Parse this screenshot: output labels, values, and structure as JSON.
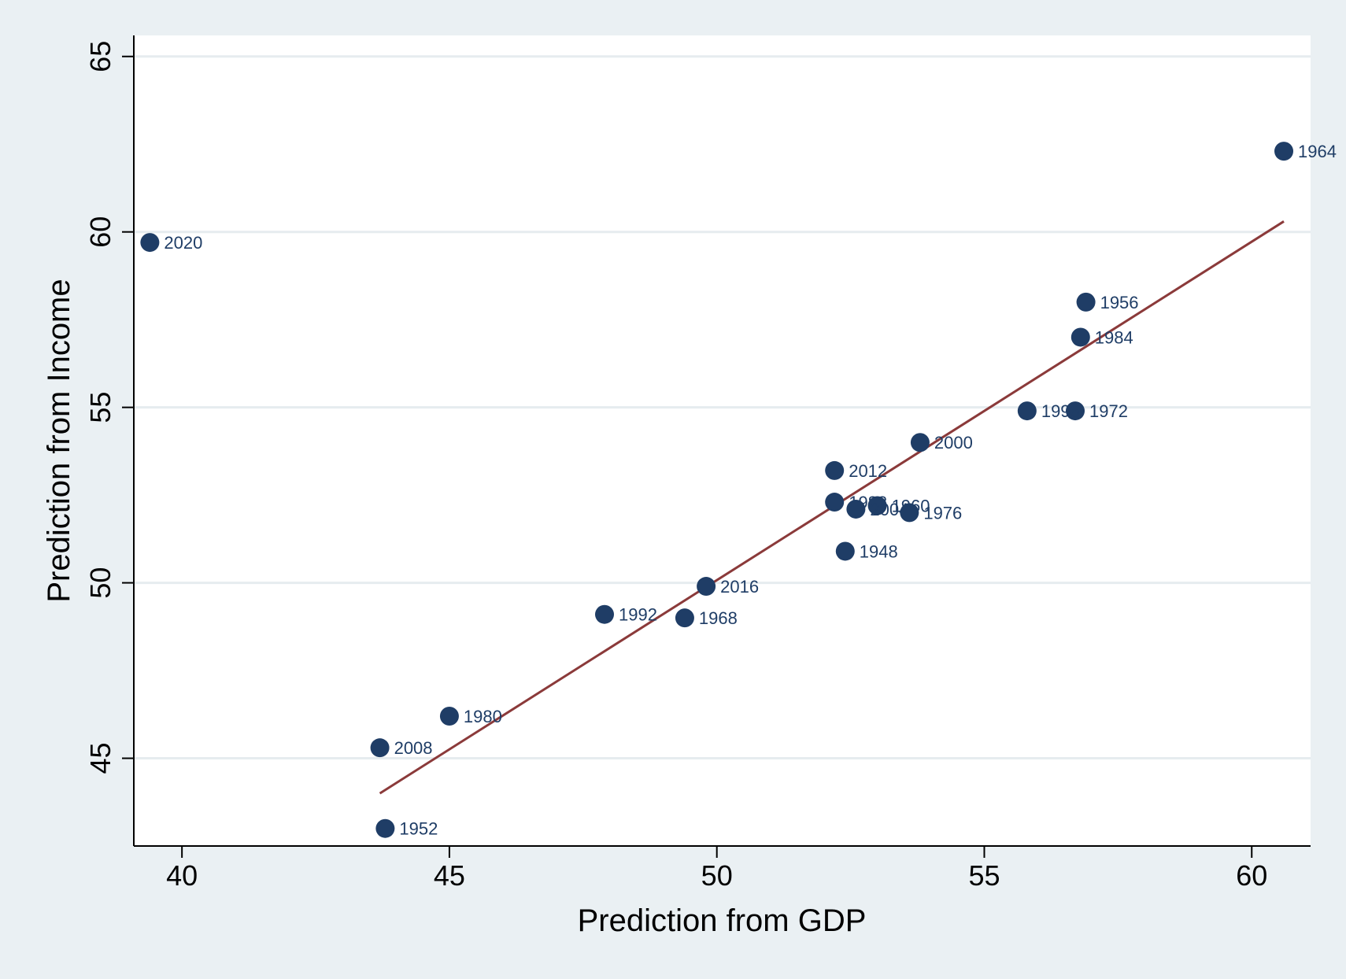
{
  "chart_data": {
    "type": "scatter",
    "title": "",
    "xlabel": "Prediction from GDP",
    "ylabel": "Prediction from Income",
    "xlim": [
      39.1,
      61.1
    ],
    "ylim": [
      42.5,
      65.6
    ],
    "x_ticks": [
      40,
      45,
      50,
      55,
      60
    ],
    "y_ticks": [
      45,
      50,
      55,
      60,
      65
    ],
    "grid": "horizontal",
    "legend": "none",
    "colors": {
      "background": "#eaf0f3",
      "plot_area": "#ffffff",
      "gridline": "#e6ecef",
      "marker": "#1f3d66",
      "label": "#1f3d66",
      "fit_line": "#8b3a3a"
    },
    "points": [
      {
        "label": "2020",
        "x": 39.4,
        "y": 59.7
      },
      {
        "label": "1964",
        "x": 60.6,
        "y": 62.3
      },
      {
        "label": "1956",
        "x": 56.9,
        "y": 58.0
      },
      {
        "label": "1984",
        "x": 56.8,
        "y": 57.0
      },
      {
        "label": "1972",
        "x": 56.7,
        "y": 54.9
      },
      {
        "label": "1996",
        "x": 55.8,
        "y": 54.9
      },
      {
        "label": "2000",
        "x": 53.8,
        "y": 54.0
      },
      {
        "label": "2012",
        "x": 52.2,
        "y": 53.2
      },
      {
        "label": "1988",
        "x": 52.2,
        "y": 52.3
      },
      {
        "label": "1960",
        "x": 53.0,
        "y": 52.2
      },
      {
        "label": "2004",
        "x": 52.6,
        "y": 52.1
      },
      {
        "label": "1976",
        "x": 53.6,
        "y": 52.0
      },
      {
        "label": "1948",
        "x": 52.4,
        "y": 50.9
      },
      {
        "label": "2016",
        "x": 49.8,
        "y": 49.9
      },
      {
        "label": "1992",
        "x": 47.9,
        "y": 49.1
      },
      {
        "label": "1968",
        "x": 49.4,
        "y": 49.0
      },
      {
        "label": "1980",
        "x": 45.0,
        "y": 46.2
      },
      {
        "label": "2008",
        "x": 43.7,
        "y": 45.3
      },
      {
        "label": "1952",
        "x": 43.8,
        "y": 43.0
      }
    ],
    "fit_line": {
      "x": [
        43.7,
        60.6
      ],
      "y": [
        44.0,
        60.3
      ]
    }
  }
}
